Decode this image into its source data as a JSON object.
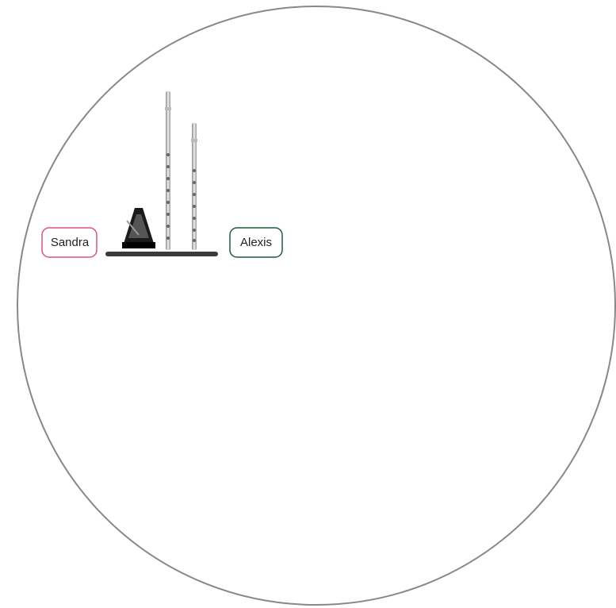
{
  "people": [
    "Sandra",
    "Alexis"
  ]
}
